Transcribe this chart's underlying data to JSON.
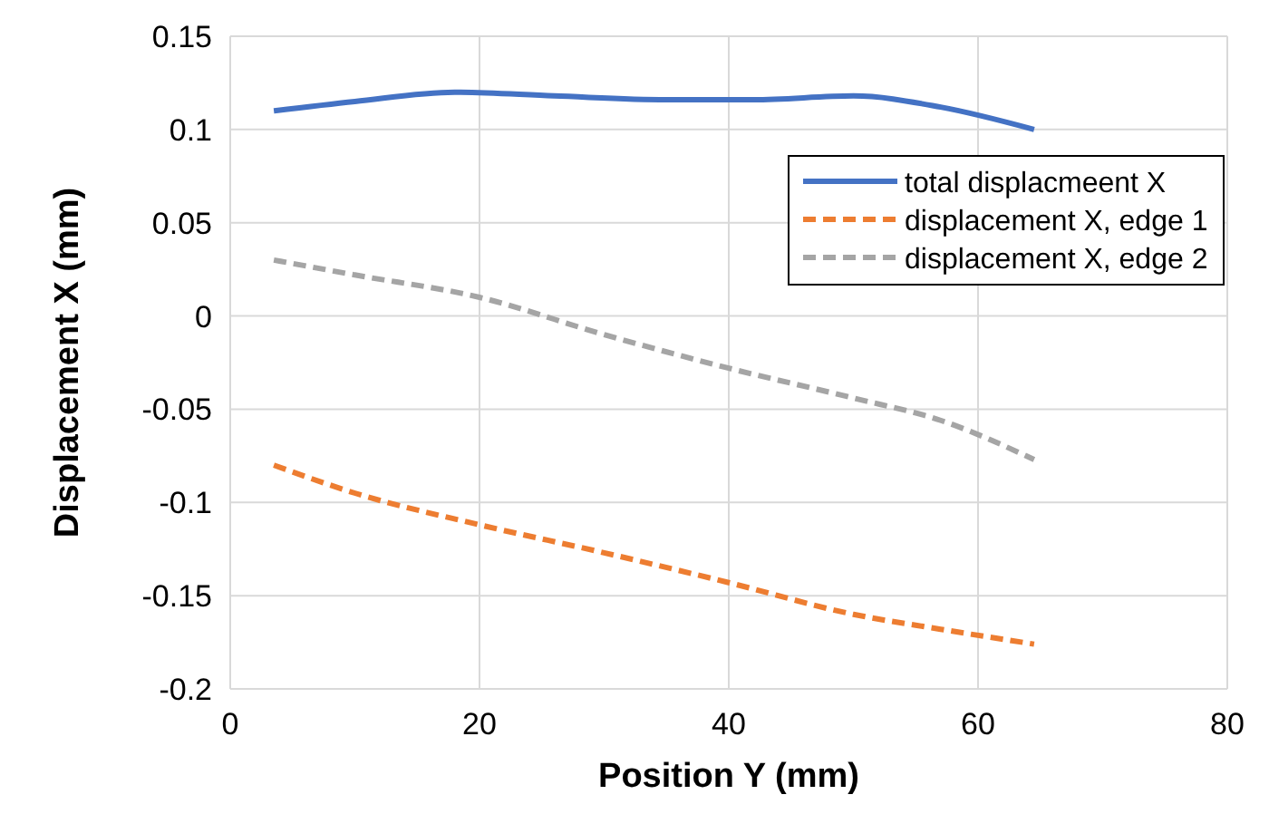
{
  "chart_data": {
    "type": "line",
    "xlabel": "Position Y (mm)",
    "ylabel": "Displacement X (mm)",
    "xlim": [
      0,
      80
    ],
    "xticks": [
      0,
      20,
      40,
      60,
      80
    ],
    "ylim": [
      -0.2,
      0.15
    ],
    "yticks": [
      -0.2,
      -0.15,
      -0.1,
      -0.05,
      0,
      0.05,
      0.1,
      0.15
    ],
    "grid": true,
    "legend": "top right",
    "marker": "none",
    "series": [
      {
        "name": "total displacmeent X",
        "color": "#4472c4",
        "line_style": "solid",
        "x": [
          3.5,
          10,
          18,
          26,
          35,
          42,
          50,
          57,
          64.5
        ],
        "values": [
          0.11,
          0.115,
          0.12,
          0.118,
          0.116,
          0.116,
          0.118,
          0.112,
          0.1
        ]
      },
      {
        "name": "displacement X, edge 1",
        "color": "#ed7d31",
        "line_style": "dashed",
        "x": [
          3.5,
          10,
          20,
          30,
          40,
          50,
          57,
          64.5
        ],
        "values": [
          -0.08,
          -0.095,
          -0.112,
          -0.127,
          -0.143,
          -0.16,
          -0.168,
          -0.176
        ]
      },
      {
        "name": "displacement X, edge 2",
        "color": "#a5a5a5",
        "line_style": "dashed",
        "x": [
          3.5,
          10,
          20,
          30,
          40,
          50,
          57,
          64.5
        ],
        "values": [
          0.03,
          0.022,
          0.01,
          -0.01,
          -0.028,
          -0.044,
          -0.056,
          -0.077
        ]
      }
    ]
  }
}
